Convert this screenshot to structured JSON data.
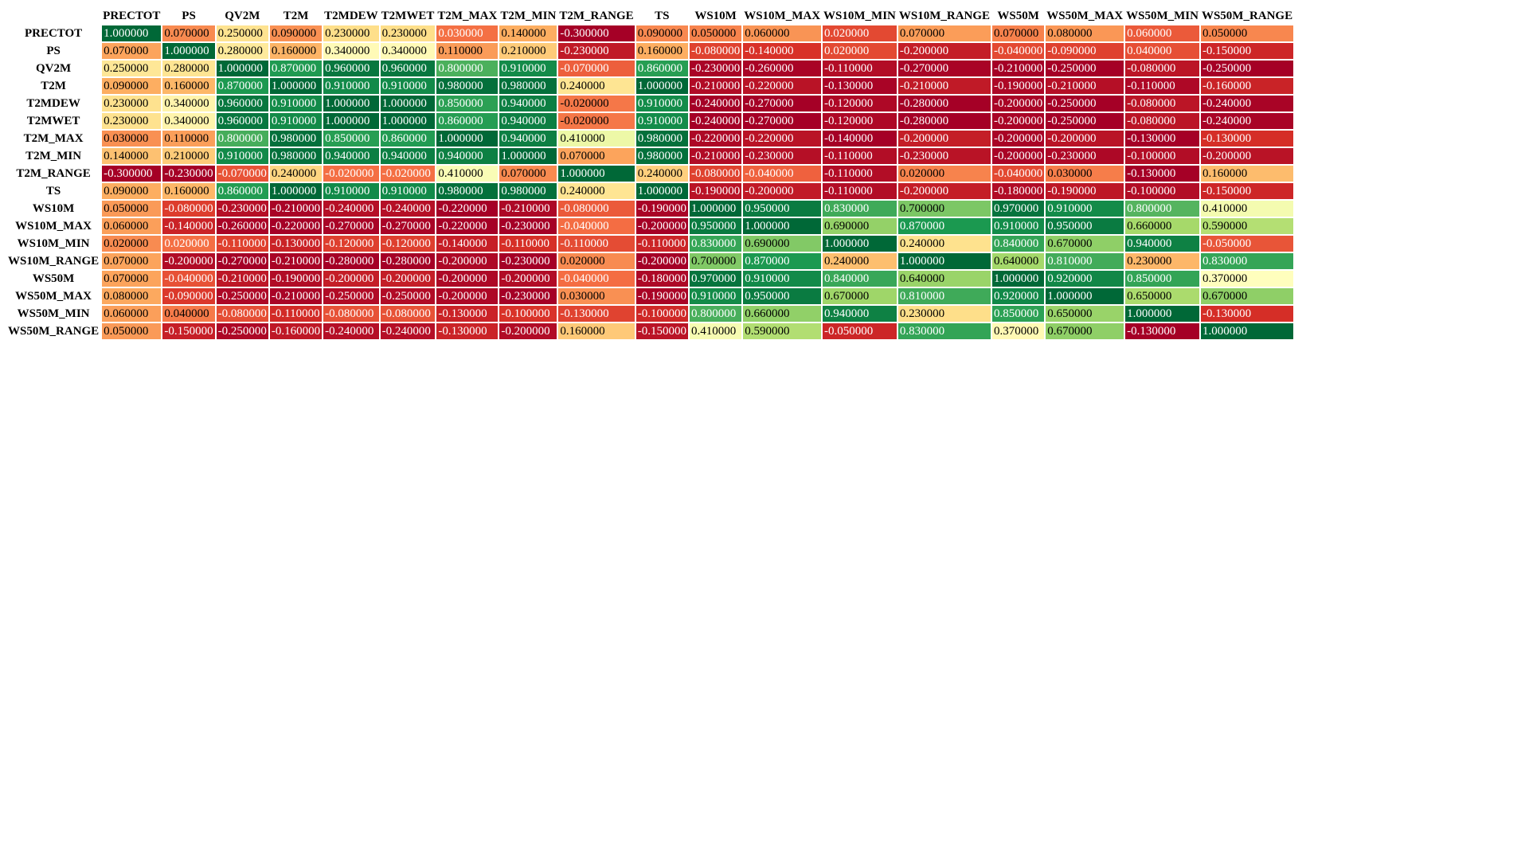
{
  "chart_data": {
    "type": "heatmap",
    "columns": [
      "PRECTOT",
      "PS",
      "QV2M",
      "T2M",
      "T2MDEW",
      "T2MWET",
      "T2M_MAX",
      "T2M_MIN",
      "T2M_RANGE",
      "TS",
      "WS10M",
      "WS10M_MAX",
      "WS10M_MIN",
      "WS10M_RANGE",
      "WS50M",
      "WS50M_MAX",
      "WS50M_MIN",
      "WS50M_RANGE"
    ],
    "rows": [
      "PRECTOT",
      "PS",
      "QV2M",
      "T2M",
      "T2MDEW",
      "T2MWET",
      "T2M_MAX",
      "T2M_MIN",
      "T2M_RANGE",
      "TS",
      "WS10M",
      "WS10M_MAX",
      "WS10M_MIN",
      "WS10M_RANGE",
      "WS50M",
      "WS50M_MAX",
      "WS50M_MIN",
      "WS50M_RANGE"
    ],
    "values": [
      [
        1.0,
        0.07,
        0.25,
        0.09,
        0.23,
        0.23,
        0.03,
        0.14,
        -0.3,
        0.09,
        0.05,
        0.06,
        0.02,
        0.07,
        0.07,
        0.08,
        0.06,
        0.05
      ],
      [
        0.07,
        1.0,
        0.28,
        0.16,
        0.34,
        0.34,
        0.11,
        0.21,
        -0.23,
        0.16,
        -0.08,
        -0.14,
        0.02,
        -0.2,
        -0.04,
        -0.09,
        0.04,
        -0.15
      ],
      [
        0.25,
        0.28,
        1.0,
        0.87,
        0.96,
        0.96,
        0.8,
        0.91,
        -0.07,
        0.86,
        -0.23,
        -0.26,
        -0.11,
        -0.27,
        -0.21,
        -0.25,
        -0.08,
        -0.25
      ],
      [
        0.09,
        0.16,
        0.87,
        1.0,
        0.91,
        0.91,
        0.98,
        0.98,
        0.24,
        1.0,
        -0.21,
        -0.22,
        -0.13,
        -0.21,
        -0.19,
        -0.21,
        -0.11,
        -0.16
      ],
      [
        0.23,
        0.34,
        0.96,
        0.91,
        1.0,
        1.0,
        0.85,
        0.94,
        -0.02,
        0.91,
        -0.24,
        -0.27,
        -0.12,
        -0.28,
        -0.2,
        -0.25,
        -0.08,
        -0.24
      ],
      [
        0.23,
        0.34,
        0.96,
        0.91,
        1.0,
        1.0,
        0.86,
        0.94,
        -0.02,
        0.91,
        -0.24,
        -0.27,
        -0.12,
        -0.28,
        -0.2,
        -0.25,
        -0.08,
        -0.24
      ],
      [
        0.03,
        0.11,
        0.8,
        0.98,
        0.85,
        0.86,
        1.0,
        0.94,
        0.41,
        0.98,
        -0.22,
        -0.22,
        -0.14,
        -0.2,
        -0.2,
        -0.2,
        -0.13,
        -0.13
      ],
      [
        0.14,
        0.21,
        0.91,
        0.98,
        0.94,
        0.94,
        0.94,
        1.0,
        0.07,
        0.98,
        -0.21,
        -0.23,
        -0.11,
        -0.23,
        -0.2,
        -0.23,
        -0.1,
        -0.2
      ],
      [
        -0.3,
        -0.23,
        -0.07,
        0.24,
        -0.02,
        -0.02,
        0.41,
        0.07,
        1.0,
        0.24,
        -0.08,
        -0.04,
        -0.11,
        0.02,
        -0.04,
        0.03,
        -0.13,
        0.16
      ],
      [
        0.09,
        0.16,
        0.86,
        1.0,
        0.91,
        0.91,
        0.98,
        0.98,
        0.24,
        1.0,
        -0.19,
        -0.2,
        -0.11,
        -0.2,
        -0.18,
        -0.19,
        -0.1,
        -0.15
      ],
      [
        0.05,
        -0.08,
        -0.23,
        -0.21,
        -0.24,
        -0.24,
        -0.22,
        -0.21,
        -0.08,
        -0.19,
        1.0,
        0.95,
        0.83,
        0.7,
        0.97,
        0.91,
        0.8,
        0.41
      ],
      [
        0.06,
        -0.14,
        -0.26,
        -0.22,
        -0.27,
        -0.27,
        -0.22,
        -0.23,
        -0.04,
        -0.2,
        0.95,
        1.0,
        0.69,
        0.87,
        0.91,
        0.95,
        0.66,
        0.59
      ],
      [
        0.02,
        0.02,
        -0.11,
        -0.13,
        -0.12,
        -0.12,
        -0.14,
        -0.11,
        -0.11,
        -0.11,
        0.83,
        0.69,
        1.0,
        0.24,
        0.84,
        0.67,
        0.94,
        -0.05
      ],
      [
        0.07,
        -0.2,
        -0.27,
        -0.21,
        -0.28,
        -0.28,
        -0.2,
        -0.23,
        0.02,
        -0.2,
        0.7,
        0.87,
        0.24,
        1.0,
        0.64,
        0.81,
        0.23,
        0.83
      ],
      [
        0.07,
        -0.04,
        -0.21,
        -0.19,
        -0.2,
        -0.2,
        -0.2,
        -0.2,
        -0.04,
        -0.18,
        0.97,
        0.91,
        0.84,
        0.64,
        1.0,
        0.92,
        0.85,
        0.37
      ],
      [
        0.08,
        -0.09,
        -0.25,
        -0.21,
        -0.25,
        -0.25,
        -0.2,
        -0.23,
        0.03,
        -0.19,
        0.91,
        0.95,
        0.67,
        0.81,
        0.92,
        1.0,
        0.65,
        0.67
      ],
      [
        0.06,
        0.04,
        -0.08,
        -0.11,
        -0.08,
        -0.08,
        -0.13,
        -0.1,
        -0.13,
        -0.1,
        0.8,
        0.66,
        0.94,
        0.23,
        0.85,
        0.65,
        1.0,
        -0.13
      ],
      [
        0.05,
        -0.15,
        -0.25,
        -0.16,
        -0.24,
        -0.24,
        -0.13,
        -0.2,
        0.16,
        -0.15,
        0.41,
        0.59,
        -0.05,
        0.83,
        0.37,
        0.67,
        -0.13,
        1.0
      ]
    ],
    "value_format": "fixed-6-decimals",
    "colormap": "RdYlGn",
    "color_scale": "per-column min-to-max",
    "colormap_stops": [
      "#a50026",
      "#d73027",
      "#f46d43",
      "#fdae61",
      "#fee08b",
      "#ffffbf",
      "#d9ef8b",
      "#a6d96a",
      "#66bd63",
      "#1a9850",
      "#006837"
    ],
    "grid": false,
    "legend": "none"
  }
}
